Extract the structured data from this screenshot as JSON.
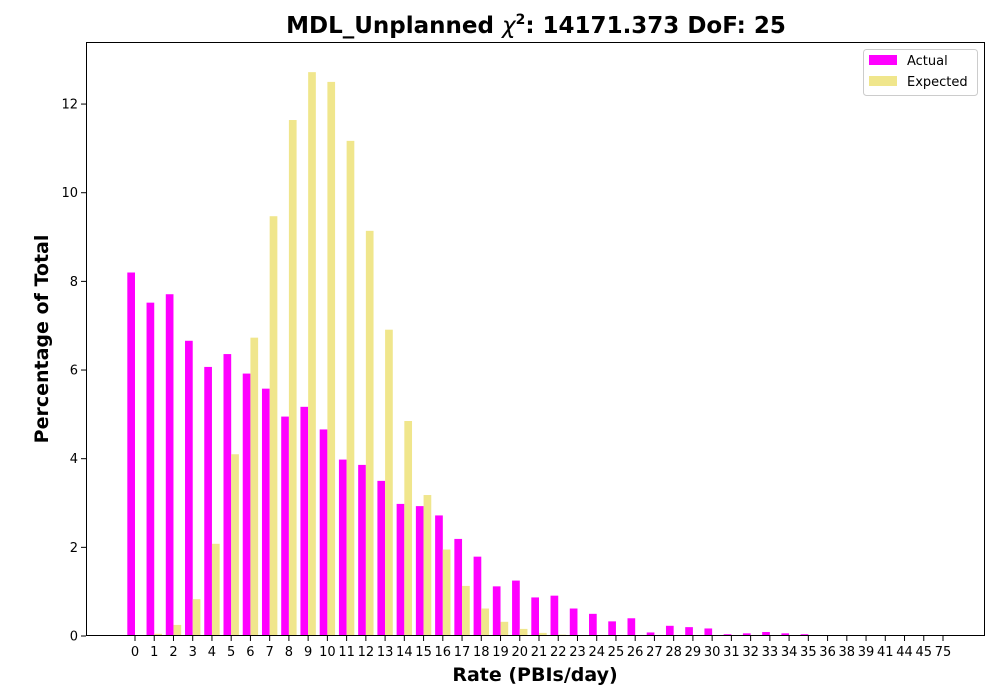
{
  "chart_data": {
    "type": "bar",
    "title_prefix": "MDL_Unplanned ",
    "title_chi": "χ",
    "title_sup": "2",
    "title_suffix": ": 14171.373 DoF: 25",
    "xlabel": "Rate (PBIs/day)",
    "ylabel": "Percentage of Total",
    "ylim": [
      0,
      13.4
    ],
    "yticks": [
      0,
      2,
      4,
      6,
      8,
      10,
      12
    ],
    "legend_position": "top-right",
    "categories": [
      "0",
      "1",
      "2",
      "3",
      "4",
      "5",
      "6",
      "7",
      "8",
      "9",
      "10",
      "11",
      "12",
      "13",
      "14",
      "15",
      "16",
      "17",
      "18",
      "19",
      "20",
      "21",
      "22",
      "23",
      "24",
      "25",
      "26",
      "27",
      "28",
      "29",
      "30",
      "31",
      "32",
      "33",
      "34",
      "35",
      "36",
      "38",
      "39",
      "41",
      "44",
      "45",
      "75"
    ],
    "series": [
      {
        "name": "Actual",
        "color": "#ff00ff",
        "values": [
          8.2,
          7.52,
          7.71,
          6.66,
          6.07,
          6.36,
          5.92,
          5.58,
          4.95,
          5.17,
          4.66,
          3.98,
          3.86,
          3.5,
          2.98,
          2.93,
          2.72,
          2.19,
          1.79,
          1.12,
          1.25,
          0.87,
          0.91,
          0.62,
          0.5,
          0.33,
          0.4,
          0.08,
          0.23,
          0.2,
          0.17,
          0.04,
          0.06,
          0.09,
          0.06,
          0.04,
          0.02,
          0.02,
          0.02,
          0.02,
          0.02,
          0.02,
          0.02
        ]
      },
      {
        "name": "Expected",
        "color": "#f0e68c",
        "values": [
          0.01,
          0.05,
          0.25,
          0.83,
          2.08,
          4.1,
          6.73,
          9.47,
          11.64,
          12.72,
          12.5,
          11.17,
          9.14,
          6.91,
          4.85,
          3.18,
          1.95,
          1.13,
          0.62,
          0.32,
          0.16,
          0.07,
          0.03,
          0.01,
          0.01,
          0,
          0,
          0,
          0,
          0,
          0,
          0,
          0,
          0,
          0,
          0,
          0,
          0,
          0,
          0,
          0,
          0,
          0
        ]
      }
    ]
  }
}
